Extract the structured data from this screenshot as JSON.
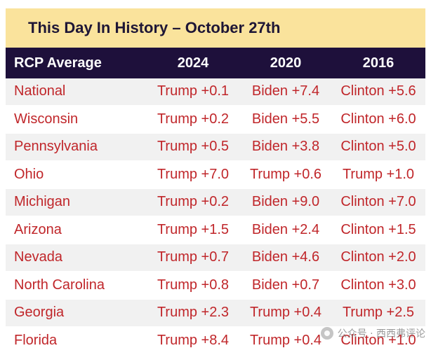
{
  "title": "This Day In History – October 27th",
  "header": {
    "label": "RCP Average",
    "years": [
      "2024",
      "2020",
      "2016"
    ]
  },
  "rows": [
    {
      "state": "National",
      "y2024": "Trump +0.1",
      "y2020": "Biden +7.4",
      "y2016": "Clinton +5.6"
    },
    {
      "state": "Wisconsin",
      "y2024": "Trump +0.2",
      "y2020": "Biden +5.5",
      "y2016": "Clinton +6.0"
    },
    {
      "state": "Pennsylvania",
      "y2024": "Trump +0.5",
      "y2020": "Biden +3.8",
      "y2016": "Clinton +5.0"
    },
    {
      "state": "Ohio",
      "y2024": "Trump +7.0",
      "y2020": "Trump +0.6",
      "y2016": "Trump +1.0"
    },
    {
      "state": "Michigan",
      "y2024": "Trump +0.2",
      "y2020": "Biden +9.0",
      "y2016": "Clinton +7.0"
    },
    {
      "state": "Arizona",
      "y2024": "Trump +1.5",
      "y2020": "Biden +2.4",
      "y2016": "Clinton +1.5"
    },
    {
      "state": "Nevada",
      "y2024": "Trump +0.7",
      "y2020": "Biden +4.6",
      "y2016": "Clinton +2.0"
    },
    {
      "state": "North Carolina",
      "y2024": "Trump +0.8",
      "y2020": "Biden +0.7",
      "y2016": "Clinton +3.0"
    },
    {
      "state": "Georgia",
      "y2024": "Trump +2.3",
      "y2020": "Trump +0.4",
      "y2016": "Trump +2.5"
    },
    {
      "state": "Florida",
      "y2024": "Trump +8.4",
      "y2020": "Trump +0.4",
      "y2016": "Clinton +1.0"
    }
  ],
  "watermark": "公众号 · 西西弗评论",
  "colors": {
    "title_bg": "#fae39c",
    "header_bg": "#1e103b",
    "text_red": "#c0262a",
    "stripe": "#f1f1f1"
  }
}
